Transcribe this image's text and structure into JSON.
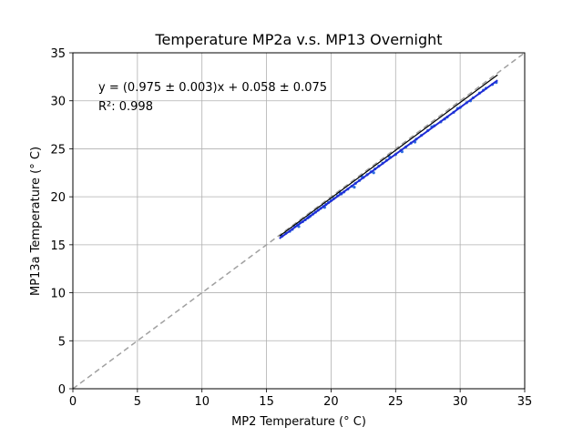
{
  "chart_data": {
    "type": "scatter",
    "title": "Temperature MP2a v.s. MP13 Overnight",
    "xlabel": "MP2 Temperature (° C)",
    "ylabel": "MP13a Temperature (° C)",
    "xlim": [
      0,
      35
    ],
    "ylim": [
      0,
      35
    ],
    "xticks": [
      "0",
      "5",
      "10",
      "15",
      "20",
      "25",
      "30",
      "35"
    ],
    "yticks": [
      "0",
      "5",
      "10",
      "15",
      "20",
      "25",
      "30",
      "35"
    ],
    "grid": true,
    "annotations": {
      "equation": "y = (0.975 ± 0.003)x + 0.058 ± 0.075",
      "r_squared": "R²: 0.998"
    },
    "reference_line": {
      "style": "dashed",
      "color": "#a0a0a0",
      "from": [
        0,
        0
      ],
      "to": [
        35,
        35
      ]
    },
    "black_line": {
      "color": "#000000",
      "from": [
        16.0,
        15.9
      ],
      "to": [
        32.9,
        32.7
      ]
    },
    "fit_line": {
      "color": "#1f2bd6",
      "slope": 0.975,
      "intercept": 0.058,
      "x_range": [
        16.0,
        32.9
      ]
    },
    "scatter_color": "#2f6fe0",
    "points": [
      [
        16.2,
        15.9
      ],
      [
        16.5,
        16.2
      ],
      [
        16.8,
        16.4
      ],
      [
        17.0,
        16.6
      ],
      [
        17.2,
        16.9
      ],
      [
        17.4,
        17.1
      ],
      [
        17.6,
        17.3
      ],
      [
        17.8,
        17.4
      ],
      [
        18.0,
        17.6
      ],
      [
        18.2,
        17.8
      ],
      [
        18.4,
        18.0
      ],
      [
        18.6,
        18.2
      ],
      [
        18.8,
        18.4
      ],
      [
        19.0,
        18.6
      ],
      [
        19.2,
        18.8
      ],
      [
        19.4,
        19.0
      ],
      [
        19.6,
        19.2
      ],
      [
        19.8,
        19.4
      ],
      [
        20.0,
        19.6
      ],
      [
        20.2,
        19.8
      ],
      [
        20.5,
        20.1
      ],
      [
        20.8,
        20.3
      ],
      [
        21.0,
        20.5
      ],
      [
        21.3,
        20.8
      ],
      [
        21.6,
        21.1
      ],
      [
        21.9,
        21.4
      ],
      [
        22.2,
        21.7
      ],
      [
        22.5,
        22.0
      ],
      [
        22.8,
        22.3
      ],
      [
        23.1,
        22.6
      ],
      [
        23.4,
        22.9
      ],
      [
        23.7,
        23.2
      ],
      [
        24.0,
        23.5
      ],
      [
        24.3,
        23.8
      ],
      [
        24.6,
        24.1
      ],
      [
        25.0,
        24.4
      ],
      [
        25.4,
        24.8
      ],
      [
        25.8,
        25.2
      ],
      [
        26.2,
        25.6
      ],
      [
        26.6,
        26.0
      ],
      [
        27.0,
        26.4
      ],
      [
        27.5,
        26.9
      ],
      [
        28.0,
        27.4
      ],
      [
        28.5,
        27.8
      ],
      [
        29.0,
        28.3
      ],
      [
        29.5,
        28.8
      ],
      [
        30.0,
        29.3
      ],
      [
        30.5,
        29.8
      ],
      [
        31.0,
        30.3
      ],
      [
        31.5,
        30.8
      ],
      [
        32.0,
        31.3
      ],
      [
        32.5,
        31.7
      ],
      [
        32.8,
        31.9
      ],
      [
        17.5,
        16.9
      ],
      [
        18.3,
        17.9
      ],
      [
        19.5,
        18.9
      ],
      [
        20.7,
        20.4
      ],
      [
        21.8,
        21.0
      ],
      [
        22.4,
        22.1
      ],
      [
        23.3,
        22.5
      ],
      [
        24.5,
        24.2
      ],
      [
        25.5,
        24.7
      ],
      [
        26.5,
        25.7
      ],
      [
        27.8,
        27.3
      ],
      [
        28.8,
        28.1
      ],
      [
        29.8,
        29.2
      ],
      [
        30.8,
        30.0
      ],
      [
        31.8,
        31.1
      ]
    ]
  }
}
